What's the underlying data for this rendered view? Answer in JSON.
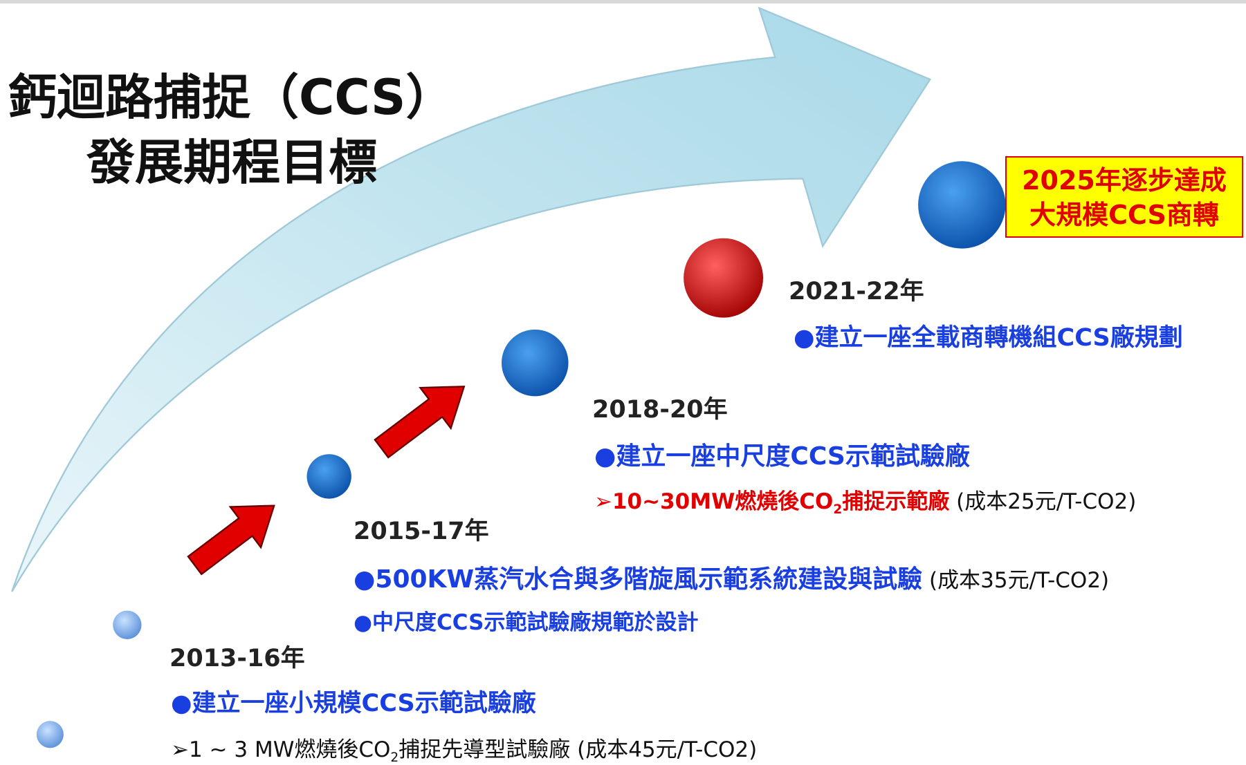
{
  "title": [
    "鈣迴路捕捉（CCS）",
    "發展期程目標"
  ],
  "goal": [
    "2025年逐步達成",
    "大規模CCS商轉"
  ],
  "milestones": [
    {
      "year": "2013-16年",
      "items": [
        {
          "parts": [
            "●建立一座小規模CCS示範試驗廠"
          ]
        },
        {
          "parts": [
            "➢1 ~ 3 MW燃燒後CO",
            "2",
            "捕捉先導型試驗廠 (成本45元/T-CO2)"
          ]
        }
      ]
    },
    {
      "year": "2015-17年",
      "items": [
        {
          "parts": [
            "●500KW蒸汽水合與多階旋風示範系統建設與試驗",
            " (成本35元/T-CO2)"
          ]
        },
        {
          "parts": [
            "●中尺度CCS示範試驗廠規範於設計"
          ]
        }
      ]
    },
    {
      "year": "2018-20年",
      "items": [
        {
          "parts": [
            "●建立一座中尺度CCS示範試驗廠"
          ]
        },
        {
          "parts": [
            "➢10~30MW燃燒後CO",
            "2",
            "捕捉示範廠",
            " (成本25元/T-CO2)"
          ]
        }
      ]
    },
    {
      "year": "2021-22年",
      "items": [
        {
          "parts": [
            "●建立一座全載商轉機組CCS廠規劃"
          ]
        }
      ]
    }
  ]
}
